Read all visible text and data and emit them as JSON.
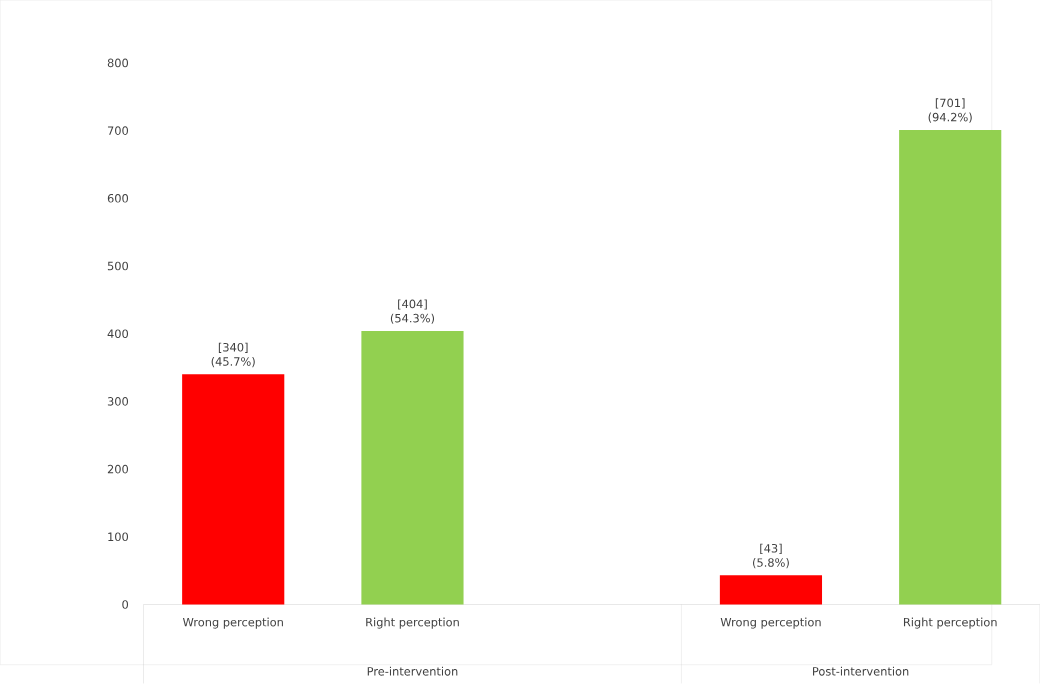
{
  "chart_data": {
    "type": "bar",
    "categories": [
      "Wrong perception",
      "Right perception",
      null,
      "Wrong perception",
      "Right perception"
    ],
    "values": [
      340,
      404,
      null,
      43,
      701
    ],
    "colors": [
      "#ff0000",
      "#92d050",
      null,
      "#ff0000",
      "#92d050"
    ],
    "value_labels": [
      "[340] (45.7%)",
      "[404] (54.3%)",
      null,
      "[43] (5.8%)",
      "[701] (94.2%)"
    ],
    "ylim": [
      0,
      800
    ],
    "yticks": [
      0,
      100,
      200,
      300,
      400,
      500,
      600,
      700,
      800
    ],
    "annotations": [
      "Pre-intervention",
      "Post-intervention"
    ]
  }
}
